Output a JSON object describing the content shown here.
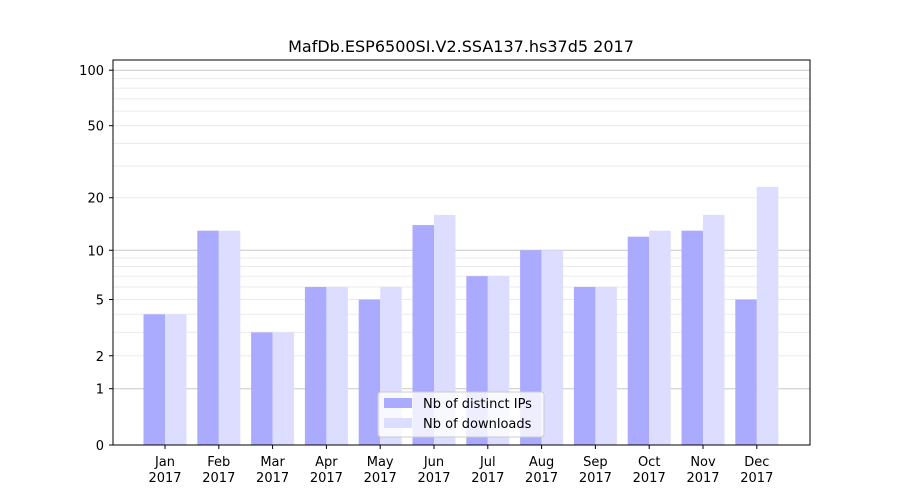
{
  "chart_data": {
    "type": "bar",
    "title": "MafDb.ESP6500SI.V2.SSA137.hs37d5 2017",
    "xlabel": "",
    "ylabel": "",
    "yscale": "log10(1+y)",
    "ylim": [
      0,
      113
    ],
    "yticks": [
      0,
      1,
      2,
      5,
      10,
      20,
      50,
      100
    ],
    "grid": true,
    "legend_position": "bottom-center",
    "categories": [
      "Jan\n2017",
      "Feb\n2017",
      "Mar\n2017",
      "Apr\n2017",
      "May\n2017",
      "Jun\n2017",
      "Jul\n2017",
      "Aug\n2017",
      "Sep\n2017",
      "Oct\n2017",
      "Nov\n2017",
      "Dec\n2017"
    ],
    "series": [
      {
        "name": "Nb of distinct IPs",
        "color": "#aaaaff",
        "values": [
          4,
          13,
          3,
          6,
          5,
          14,
          7,
          10,
          6,
          12,
          13,
          5
        ]
      },
      {
        "name": "Nb of downloads",
        "color": "#ddddff",
        "values": [
          4,
          13,
          3,
          6,
          6,
          16,
          7,
          10,
          6,
          13,
          16,
          23
        ]
      }
    ]
  }
}
